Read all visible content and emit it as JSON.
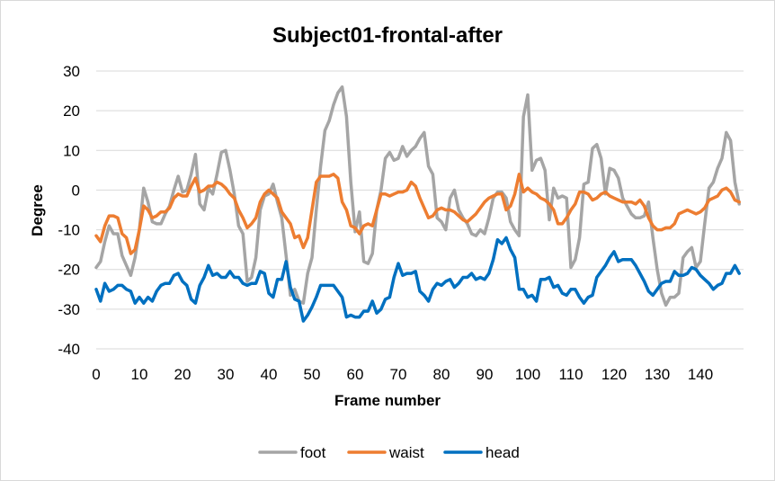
{
  "chart_data": {
    "type": "line",
    "title": "Subject01-frontal-after",
    "xlabel": "Frame number",
    "ylabel": "Degree",
    "xlim": [
      0,
      150
    ],
    "ylim": [
      -40,
      30
    ],
    "xticks": [
      0,
      10,
      20,
      30,
      40,
      50,
      60,
      70,
      80,
      90,
      100,
      110,
      120,
      130,
      140
    ],
    "yticks": [
      30,
      20,
      10,
      0,
      -10,
      -20,
      -30,
      -40
    ],
    "grid": "horizontal",
    "legend_position": "bottom",
    "series": [
      {
        "name": "foot",
        "color": "#a5a5a5",
        "values": [
          -19.5,
          -18,
          -13,
          -9,
          -11,
          -11,
          -16.5,
          -19,
          -21.5,
          -17,
          -10,
          0.5,
          -3,
          -8,
          -8.5,
          -8.5,
          -6,
          -4,
          0,
          3.5,
          -0.5,
          0,
          4,
          9,
          -3.5,
          -5,
          0.5,
          -1,
          4,
          9.5,
          10,
          5,
          -1,
          -9,
          -11,
          -23,
          -22,
          -17,
          -5,
          -1.5,
          -1,
          1.5,
          -3,
          -7,
          -16.5,
          -26.5,
          -25,
          -28,
          -28.5,
          -21,
          -17,
          -5,
          6,
          15,
          17.5,
          21.5,
          24.5,
          26,
          18.5,
          2,
          -10.5,
          -5.5,
          -18,
          -18.5,
          -16,
          -5,
          0,
          8,
          9.5,
          7.5,
          8,
          11,
          8.5,
          10,
          11,
          13,
          14.5,
          6,
          4,
          -7,
          -8,
          -10,
          -2,
          0,
          -5,
          -7,
          -8.5,
          -11,
          -11.5,
          -10,
          -11,
          -7,
          -2,
          -0.5,
          -0.5,
          -2,
          -8,
          -10,
          -11.5,
          18.5,
          24,
          5,
          7.5,
          8,
          5,
          -7.5,
          0.5,
          -2,
          -1.5,
          -2,
          -19.5,
          -17.5,
          -12,
          1.5,
          2,
          10.5,
          11.5,
          8,
          -1,
          5.5,
          5,
          3,
          -2,
          -4,
          -6,
          -7,
          -7,
          -6.5,
          -3,
          -12,
          -20,
          -26,
          -29,
          -27,
          -27,
          -26,
          -17,
          -15.5,
          -14.5,
          -19.5,
          -18,
          -8.5,
          0.5,
          2,
          5.5,
          8,
          14.5,
          12.5,
          2,
          -3.5
        ]
      },
      {
        "name": "waist",
        "color": "#ed7d31",
        "values": [
          -11.5,
          -13,
          -9,
          -6.5,
          -6.5,
          -7,
          -11,
          -12,
          -16,
          -15,
          -10,
          -4,
          -5,
          -7,
          -6.5,
          -5.5,
          -5.5,
          -4.5,
          -2,
          -1,
          -1.5,
          -1.5,
          1,
          3,
          -0.5,
          0,
          1,
          1,
          2,
          1.5,
          0.5,
          -1,
          -2,
          -5,
          -7,
          -9.5,
          -8.5,
          -7,
          -3,
          -1,
          0,
          -1,
          -2,
          -5.5,
          -7,
          -8.5,
          -12,
          -11.5,
          -14.5,
          -12,
          -5,
          2,
          3.5,
          3.5,
          3.5,
          4,
          3,
          -3,
          -5,
          -9,
          -9.5,
          -11,
          -9,
          -8.5,
          -9,
          -5,
          -1,
          -1,
          -1.5,
          -1,
          -0.5,
          -0.5,
          0,
          2,
          1,
          -2,
          -4.5,
          -7,
          -6.5,
          -5,
          -4.5,
          -5,
          -5,
          -5.5,
          -6.5,
          -7.5,
          -8,
          -7,
          -6,
          -4.5,
          -3,
          -2,
          -1.5,
          -1,
          -1,
          -5,
          -4,
          -1,
          4,
          -0.5,
          0.5,
          -0.5,
          -1,
          -2,
          -2.5,
          -3.5,
          -5,
          -8.5,
          -8.5,
          -7,
          -5,
          -3.5,
          -0.5,
          -0.5,
          -1,
          -2.5,
          -2,
          -1,
          -0.5,
          -1.5,
          -2,
          -2.5,
          -3,
          -3,
          -3,
          -3.5,
          -2.5,
          -4,
          -7,
          -9,
          -10,
          -10,
          -9.5,
          -9.5,
          -8.5,
          -6,
          -5.5,
          -5,
          -5.5,
          -6,
          -5.5,
          -4.5,
          -2.5,
          -2,
          -1.5,
          0,
          0.5,
          -0.5,
          -2.5,
          -3
        ]
      },
      {
        "name": "head",
        "color": "#0070c0",
        "values": [
          -25,
          -28,
          -23.5,
          -25.5,
          -25,
          -24,
          -24,
          -25,
          -25.5,
          -28.5,
          -27,
          -28.5,
          -27,
          -28,
          -25.5,
          -24,
          -23.5,
          -23.5,
          -21.5,
          -21,
          -23,
          -24,
          -27.5,
          -28.5,
          -24,
          -22,
          -19,
          -21.5,
          -21,
          -22,
          -22,
          -20.5,
          -22,
          -22,
          -23.5,
          -24,
          -23.5,
          -23.5,
          -20.5,
          -21,
          -26,
          -27,
          -22.5,
          -22.5,
          -18,
          -24.5,
          -27.5,
          -28,
          -33,
          -31.5,
          -29.5,
          -27,
          -24,
          -24,
          -24,
          -24,
          -25.5,
          -27,
          -32,
          -31.5,
          -32,
          -32,
          -30.5,
          -30.5,
          -28,
          -31,
          -30,
          -27.5,
          -27,
          -22,
          -18.5,
          -21.5,
          -21,
          -21,
          -20.5,
          -25.5,
          -26.5,
          -28,
          -25,
          -23.5,
          -24,
          -23,
          -22.5,
          -24.5,
          -23.5,
          -22,
          -22,
          -21,
          -22.5,
          -22,
          -22.5,
          -21,
          -17.5,
          -12.5,
          -13.5,
          -12,
          -15,
          -17,
          -25,
          -25,
          -27,
          -26.5,
          -28,
          -22.5,
          -22.5,
          -22,
          -24.5,
          -24,
          -26,
          -26.5,
          -25,
          -25,
          -27,
          -28.5,
          -27,
          -26.5,
          -22,
          -20.5,
          -19,
          -17,
          -15.5,
          -18,
          -17.5,
          -17.5,
          -17.5,
          -19,
          -21,
          -23,
          -25.5,
          -26.5,
          -25,
          -23.5,
          -23,
          -23,
          -20.5,
          -21.5,
          -21.5,
          -21,
          -19.5,
          -20,
          -21.5,
          -22.5,
          -23.5,
          -25,
          -24,
          -23.5,
          -21,
          -21,
          -19,
          -21
        ]
      }
    ]
  }
}
